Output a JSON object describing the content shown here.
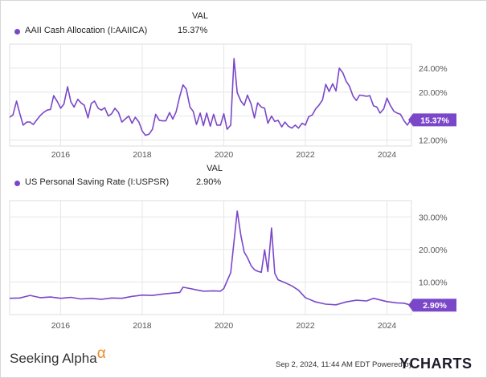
{
  "colors": {
    "series": "#7a47c9",
    "grid": "#e6e6e6",
    "axis_text": "#555555",
    "label_bg": "#7a47c9"
  },
  "footer": {
    "brand": "Seeking Alpha",
    "brand_symbol": "α",
    "timestamp": "Sep 2, 2024, 11:44 AM EDT Powered by",
    "logo": "YCHARTS"
  },
  "chart_data": [
    {
      "type": "line",
      "legend_header": "VAL",
      "series": [
        {
          "name": "AAII Cash Allocation (I:AAIICA)",
          "value_label": "15.37%"
        }
      ],
      "y_ticks": [
        "12.00%",
        "16.00%",
        "20.00%",
        "24.00%"
      ],
      "x_ticks": [
        "2016",
        "2018",
        "2020",
        "2022",
        "2024"
      ],
      "ylim": [
        11,
        28
      ],
      "xlim": [
        2014.75,
        2024.6
      ],
      "grid": true,
      "points": [
        [
          2014.75,
          15.8
        ],
        [
          2014.83,
          16.2
        ],
        [
          2014.92,
          18.5
        ],
        [
          2015.0,
          16.4
        ],
        [
          2015.08,
          14.5
        ],
        [
          2015.17,
          15.0
        ],
        [
          2015.25,
          15.0
        ],
        [
          2015.33,
          14.6
        ],
        [
          2015.42,
          15.4
        ],
        [
          2015.5,
          16.1
        ],
        [
          2015.58,
          16.6
        ],
        [
          2015.67,
          17.0
        ],
        [
          2015.75,
          17.1
        ],
        [
          2015.83,
          19.4
        ],
        [
          2015.92,
          18.4
        ],
        [
          2016.0,
          17.3
        ],
        [
          2016.08,
          18.0
        ],
        [
          2016.17,
          20.9
        ],
        [
          2016.25,
          18.4
        ],
        [
          2016.33,
          17.5
        ],
        [
          2016.42,
          18.8
        ],
        [
          2016.5,
          18.2
        ],
        [
          2016.58,
          17.8
        ],
        [
          2016.67,
          15.7
        ],
        [
          2016.75,
          18.1
        ],
        [
          2016.83,
          18.5
        ],
        [
          2016.92,
          17.3
        ],
        [
          2017.0,
          17.0
        ],
        [
          2017.08,
          17.4
        ],
        [
          2017.17,
          16.0
        ],
        [
          2017.25,
          16.4
        ],
        [
          2017.33,
          17.3
        ],
        [
          2017.42,
          16.6
        ],
        [
          2017.5,
          15.0
        ],
        [
          2017.58,
          15.5
        ],
        [
          2017.67,
          16.0
        ],
        [
          2017.75,
          14.8
        ],
        [
          2017.83,
          15.8
        ],
        [
          2017.92,
          15.0
        ],
        [
          2018.0,
          13.5
        ],
        [
          2018.08,
          12.8
        ],
        [
          2018.17,
          13.0
        ],
        [
          2018.25,
          13.8
        ],
        [
          2018.33,
          16.3
        ],
        [
          2018.42,
          15.3
        ],
        [
          2018.5,
          15.2
        ],
        [
          2018.58,
          15.2
        ],
        [
          2018.67,
          16.6
        ],
        [
          2018.75,
          15.5
        ],
        [
          2018.83,
          16.7
        ],
        [
          2018.92,
          19.3
        ],
        [
          2019.0,
          21.2
        ],
        [
          2019.08,
          20.5
        ],
        [
          2019.17,
          17.5
        ],
        [
          2019.25,
          16.8
        ],
        [
          2019.33,
          14.6
        ],
        [
          2019.42,
          16.5
        ],
        [
          2019.5,
          14.4
        ],
        [
          2019.58,
          16.5
        ],
        [
          2019.67,
          14.3
        ],
        [
          2019.75,
          16.3
        ],
        [
          2019.83,
          14.5
        ],
        [
          2019.92,
          14.5
        ],
        [
          2020.0,
          16.4
        ],
        [
          2020.08,
          13.8
        ],
        [
          2020.17,
          14.5
        ],
        [
          2020.25,
          25.6
        ],
        [
          2020.33,
          19.9
        ],
        [
          2020.42,
          18.5
        ],
        [
          2020.5,
          17.8
        ],
        [
          2020.58,
          19.5
        ],
        [
          2020.67,
          18.0
        ],
        [
          2020.75,
          15.7
        ],
        [
          2020.83,
          18.2
        ],
        [
          2020.92,
          17.5
        ],
        [
          2021.0,
          17.3
        ],
        [
          2021.08,
          14.8
        ],
        [
          2021.17,
          16.0
        ],
        [
          2021.25,
          15.1
        ],
        [
          2021.33,
          15.3
        ],
        [
          2021.42,
          14.2
        ],
        [
          2021.5,
          15.0
        ],
        [
          2021.58,
          14.3
        ],
        [
          2021.67,
          14.0
        ],
        [
          2021.75,
          14.5
        ],
        [
          2021.83,
          14.0
        ],
        [
          2021.92,
          14.8
        ],
        [
          2022.0,
          14.5
        ],
        [
          2022.08,
          15.9
        ],
        [
          2022.17,
          16.2
        ],
        [
          2022.25,
          17.2
        ],
        [
          2022.33,
          17.8
        ],
        [
          2022.42,
          18.7
        ],
        [
          2022.5,
          21.3
        ],
        [
          2022.58,
          20.1
        ],
        [
          2022.67,
          21.4
        ],
        [
          2022.75,
          20.2
        ],
        [
          2022.83,
          24.0
        ],
        [
          2022.92,
          23.2
        ],
        [
          2023.0,
          21.8
        ],
        [
          2023.08,
          21.0
        ],
        [
          2023.17,
          19.3
        ],
        [
          2023.25,
          18.6
        ],
        [
          2023.33,
          19.5
        ],
        [
          2023.42,
          19.4
        ],
        [
          2023.5,
          19.3
        ],
        [
          2023.58,
          19.4
        ],
        [
          2023.67,
          17.7
        ],
        [
          2023.75,
          17.5
        ],
        [
          2023.83,
          16.5
        ],
        [
          2023.92,
          17.2
        ],
        [
          2024.0,
          19.0
        ],
        [
          2024.08,
          17.8
        ],
        [
          2024.17,
          16.8
        ],
        [
          2024.25,
          16.5
        ],
        [
          2024.33,
          16.3
        ],
        [
          2024.42,
          15.2
        ],
        [
          2024.5,
          14.5
        ],
        [
          2024.58,
          15.37
        ]
      ]
    },
    {
      "type": "line",
      "legend_header": "VAL",
      "series": [
        {
          "name": "US Personal Saving Rate (I:USPSR)",
          "value_label": "2.90%"
        }
      ],
      "y_ticks": [
        "10.00%",
        "20.00%",
        "30.00%"
      ],
      "x_ticks": [
        "2016",
        "2018",
        "2020",
        "2022",
        "2024"
      ],
      "ylim": [
        0,
        35
      ],
      "xlim": [
        2014.75,
        2024.6
      ],
      "grid": true,
      "points": [
        [
          2014.75,
          5.0
        ],
        [
          2015.0,
          5.1
        ],
        [
          2015.25,
          5.9
        ],
        [
          2015.5,
          5.2
        ],
        [
          2015.75,
          5.4
        ],
        [
          2016.0,
          5.0
        ],
        [
          2016.25,
          5.3
        ],
        [
          2016.5,
          4.8
        ],
        [
          2016.75,
          5.0
        ],
        [
          2017.0,
          4.7
        ],
        [
          2017.25,
          5.1
        ],
        [
          2017.5,
          5.0
        ],
        [
          2017.75,
          5.6
        ],
        [
          2018.0,
          6.0
        ],
        [
          2018.25,
          5.9
        ],
        [
          2018.5,
          6.3
        ],
        [
          2018.75,
          6.6
        ],
        [
          2018.92,
          6.8
        ],
        [
          2019.0,
          8.4
        ],
        [
          2019.17,
          8.0
        ],
        [
          2019.33,
          7.6
        ],
        [
          2019.5,
          7.2
        ],
        [
          2019.75,
          7.3
        ],
        [
          2019.92,
          7.2
        ],
        [
          2020.0,
          8.0
        ],
        [
          2020.17,
          12.9
        ],
        [
          2020.33,
          31.8
        ],
        [
          2020.42,
          24.2
        ],
        [
          2020.5,
          19.2
        ],
        [
          2020.58,
          17.5
        ],
        [
          2020.67,
          15.0
        ],
        [
          2020.75,
          13.8
        ],
        [
          2020.83,
          13.3
        ],
        [
          2020.92,
          13.0
        ],
        [
          2021.0,
          19.9
        ],
        [
          2021.08,
          13.2
        ],
        [
          2021.17,
          26.6
        ],
        [
          2021.25,
          12.7
        ],
        [
          2021.33,
          10.7
        ],
        [
          2021.5,
          9.8
        ],
        [
          2021.67,
          8.8
        ],
        [
          2021.83,
          7.5
        ],
        [
          2022.0,
          5.2
        ],
        [
          2022.25,
          3.9
        ],
        [
          2022.5,
          3.2
        ],
        [
          2022.75,
          3.0
        ],
        [
          2023.0,
          3.9
        ],
        [
          2023.25,
          4.4
        ],
        [
          2023.5,
          4.2
        ],
        [
          2023.67,
          5.0
        ],
        [
          2023.83,
          4.5
        ],
        [
          2024.0,
          4.0
        ],
        [
          2024.25,
          3.6
        ],
        [
          2024.42,
          3.5
        ],
        [
          2024.58,
          2.9
        ]
      ]
    }
  ]
}
